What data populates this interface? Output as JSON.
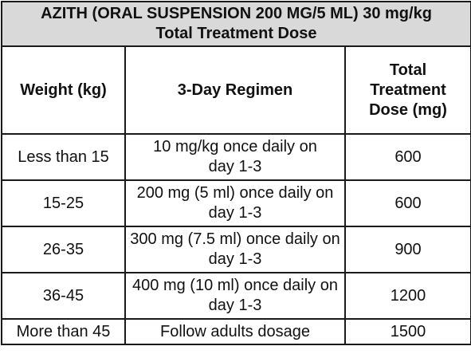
{
  "title": {
    "line1": "AZITH (ORAL SUSPENSION 200 MG/5 ML) 30 mg/kg",
    "line2": "Total Treatment Dose"
  },
  "headers": {
    "weight": "Weight (kg)",
    "regimen": "3-Day Regimen",
    "total_dose": "Total Treatment Dose (mg)"
  },
  "rows": [
    {
      "weight": "Less than 15",
      "regimen": "10 mg/kg once daily on day 1-3",
      "dose": "600"
    },
    {
      "weight": "15-25",
      "regimen": "200 mg (5 ml) once daily on day 1-3",
      "dose": "600"
    },
    {
      "weight": "26-35",
      "regimen": "300 mg (7.5 ml) once daily on day 1-3",
      "dose": "900"
    },
    {
      "weight": "36-45",
      "regimen": "400 mg (10 ml) once daily on day 1-3",
      "dose": "1200"
    },
    {
      "weight": "More than 45",
      "regimen": "Follow adults dosage",
      "dose": "1500"
    }
  ],
  "colors": {
    "title_background": "#d9d9d9",
    "border": "#1a1a1a"
  }
}
